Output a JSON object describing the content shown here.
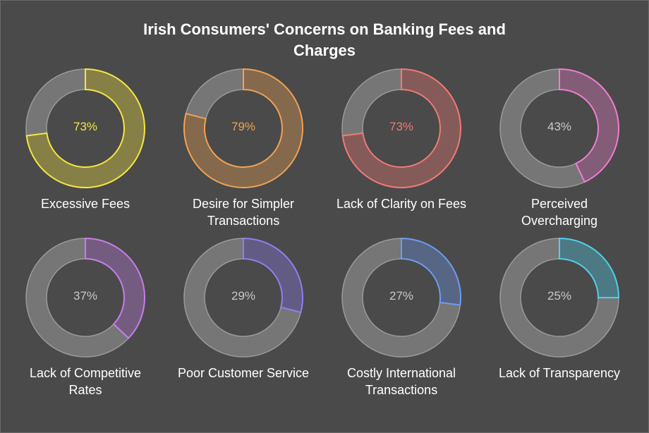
{
  "chart_data": {
    "type": "donut",
    "title": "Irish Consumers' Concerns on Banking Fees and Charges",
    "unit": "%",
    "items": [
      {
        "label": "Excessive Fees",
        "value": 73,
        "color": "#f5e642"
      },
      {
        "label": "Desire for Simpler Transactions",
        "value": 79,
        "color": "#f2a254"
      },
      {
        "label": "Lack of Clarity on Fees",
        "value": 73,
        "color": "#f07a76"
      },
      {
        "label": "Perceived Overcharging",
        "value": 43,
        "color": "#ee7fcf"
      },
      {
        "label": "Lack of Competitive Rates",
        "value": 37,
        "color": "#c47fe8"
      },
      {
        "label": "Poor Customer Service",
        "value": 29,
        "color": "#8f7ff0"
      },
      {
        "label": "Costly International Transactions",
        "value": 27,
        "color": "#6f9cf0"
      },
      {
        "label": "Lack of Transparency",
        "value": 25,
        "color": "#4fd0ee"
      }
    ],
    "display": [
      {
        "pct": "73%",
        "label": [
          "Excessive Fees"
        ]
      },
      {
        "pct": "79%",
        "label": [
          "Desire for Simpler",
          "Transactions"
        ]
      },
      {
        "pct": "73%",
        "label": [
          "Lack of Clarity on Fees"
        ]
      },
      {
        "pct": "43%",
        "label": [
          "Perceived",
          "Overcharging"
        ]
      },
      {
        "pct": "37%",
        "label": [
          "Lack of Competitive",
          "Rates"
        ]
      },
      {
        "pct": "29%",
        "label": [
          "Poor Customer Service"
        ]
      },
      {
        "pct": "27%",
        "label": [
          "Costly International",
          "Transactions"
        ]
      },
      {
        "pct": "25%",
        "label": [
          "Lack of Transparency"
        ]
      }
    ],
    "track_color": "#767676",
    "inactive_text_color": "#c8c8c8"
  }
}
